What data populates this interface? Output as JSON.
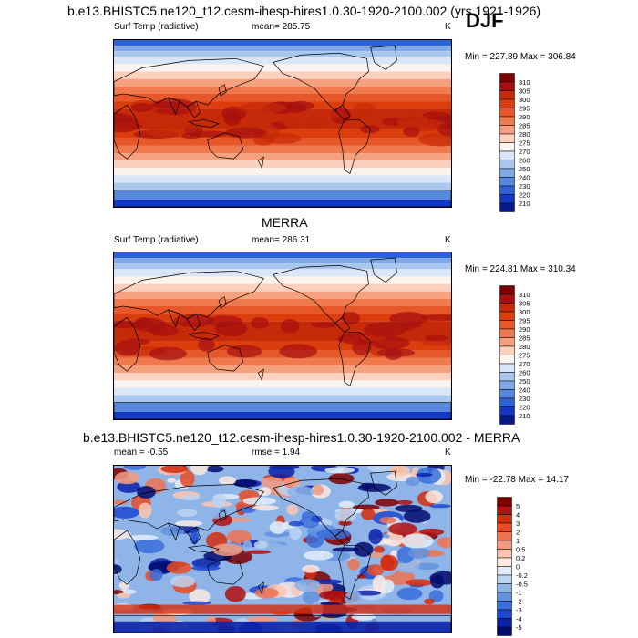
{
  "page": {
    "season": "DJF"
  },
  "chart_data": [
    {
      "type": "heatmap",
      "title": "b.e13.BHISTC5.ne120_t12.cesm-ihesp-hires1.0.30-1920-2100.002 (yrs 1921-1926)",
      "left_label": "Surf Temp (radiative)",
      "center_label": "mean= 285.75",
      "right_label": "K",
      "stats": "Min = 227.89 Max = 306.84",
      "min": 227.89,
      "max": 306.84,
      "mean": 285.75,
      "units": "K",
      "colorbar_levels": [
        "310",
        "305",
        "300",
        "295",
        "290",
        "285",
        "280",
        "275",
        "270",
        "260",
        "250",
        "240",
        "230",
        "220",
        "210"
      ],
      "palette": [
        "#7f0000",
        "#a50f0f",
        "#c62a08",
        "#dc3d0d",
        "#e8572a",
        "#ef7a4e",
        "#f5a07e",
        "#fbd1be",
        "#fbf3ee",
        "#d8e6f7",
        "#a9c7ee",
        "#7fa9e6",
        "#5688dd",
        "#2c62d6",
        "#1438c3",
        "#061a8a"
      ]
    },
    {
      "type": "heatmap",
      "title": "MERRA",
      "left_label": "Surf Temp (radiative)",
      "center_label": "mean= 286.31",
      "right_label": "K",
      "stats": "Min = 224.81 Max = 310.34",
      "min": 224.81,
      "max": 310.34,
      "mean": 286.31,
      "units": "K",
      "colorbar_levels": [
        "310",
        "305",
        "300",
        "295",
        "290",
        "285",
        "280",
        "275",
        "270",
        "260",
        "250",
        "240",
        "230",
        "220",
        "210"
      ],
      "palette": [
        "#7f0000",
        "#a50f0f",
        "#c62a08",
        "#dc3d0d",
        "#e8572a",
        "#ef7a4e",
        "#f5a07e",
        "#fbd1be",
        "#fbf3ee",
        "#d8e6f7",
        "#a9c7ee",
        "#7fa9e6",
        "#5688dd",
        "#2c62d6",
        "#1438c3",
        "#061a8a"
      ]
    },
    {
      "type": "heatmap",
      "title": "b.e13.BHISTC5.ne120_t12.cesm-ihesp-hires1.0.30-1920-2100.002 - MERRA",
      "left_label": "mean =  -0.55",
      "center_label": "rmse =   1.94",
      "right_label": "K",
      "stats": "Min = -22.78 Max =  14.17",
      "min": -22.78,
      "max": 14.17,
      "mean": -0.55,
      "rmse": 1.94,
      "units": "K",
      "colorbar_levels": [
        "5",
        "4",
        "3",
        "2",
        "1",
        "0.5",
        "0.2",
        "0",
        "-0.2",
        "-0.5",
        "-1",
        "-2",
        "-3",
        "-4",
        "-5"
      ],
      "palette": [
        "#7f0000",
        "#b4100e",
        "#d42d0e",
        "#e84c24",
        "#f07350",
        "#f59a7e",
        "#fbc5b0",
        "#fde9e0",
        "#e3edf9",
        "#bcd3f1",
        "#8eb4e8",
        "#6393df",
        "#3a6edb",
        "#1d47cf",
        "#0a22aa",
        "#020c6e"
      ]
    }
  ]
}
